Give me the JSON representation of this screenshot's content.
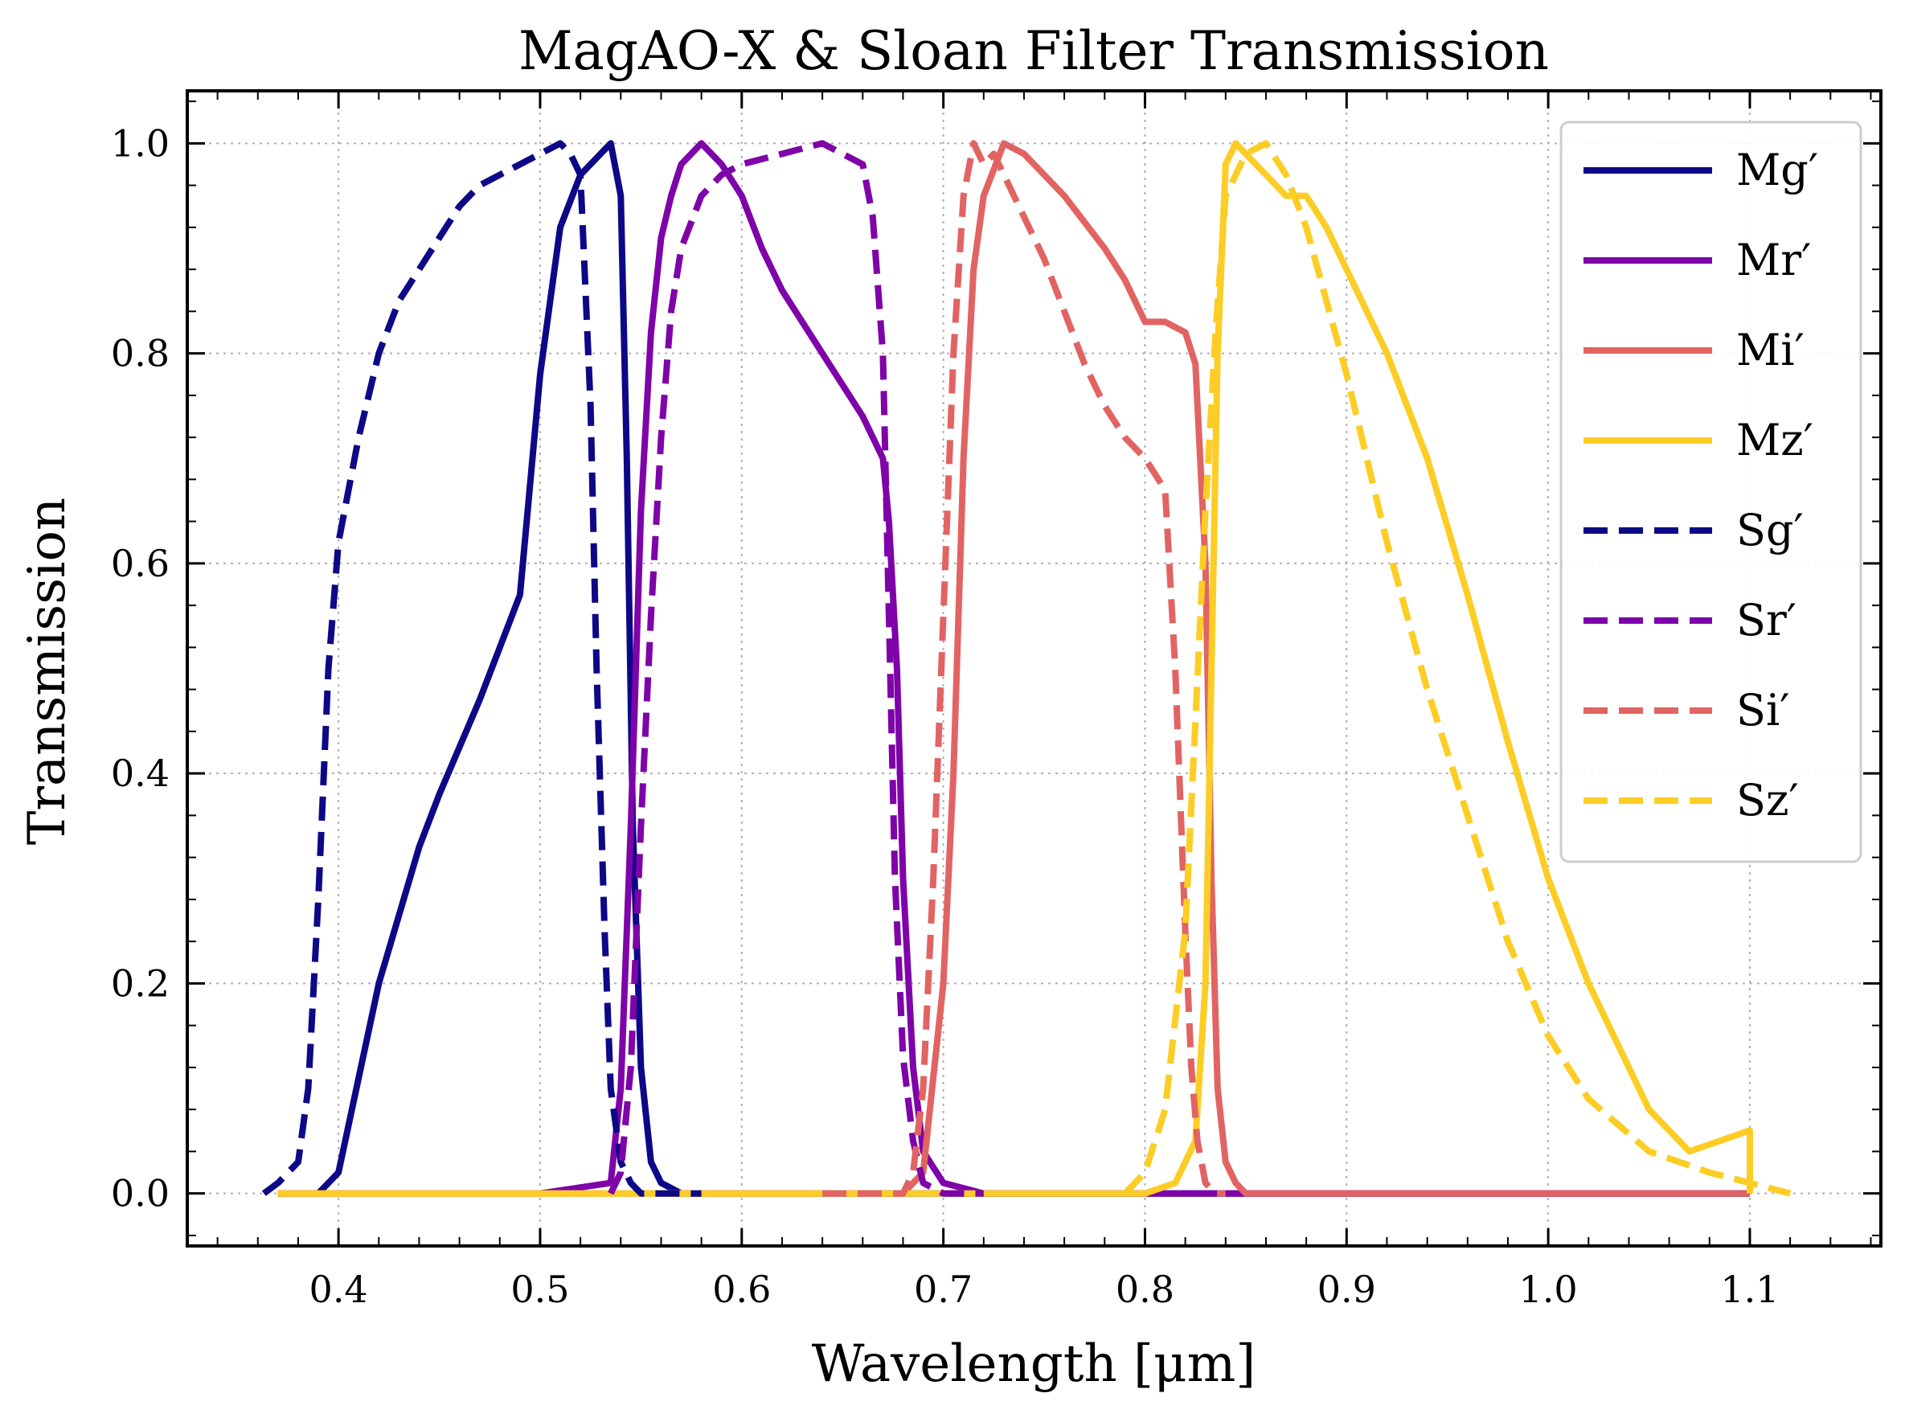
{
  "chart_data": {
    "type": "line",
    "title": "MagAO-X & Sloan Filter Transmission",
    "xlabel": "Wavelength [μm]",
    "ylabel": "Transmission",
    "xlim": [
      0.325,
      1.165
    ],
    "ylim": [
      -0.05,
      1.05
    ],
    "xticks": [
      0.4,
      0.5,
      0.6,
      0.7,
      0.8,
      0.9,
      1.0,
      1.1
    ],
    "xtick_labels": [
      "0.4",
      "0.5",
      "0.6",
      "0.7",
      "0.8",
      "0.9",
      "1.0",
      "1.1"
    ],
    "yticks": [
      0.0,
      0.2,
      0.4,
      0.6,
      0.8,
      1.0
    ],
    "ytick_labels": [
      "0.0",
      "0.2",
      "0.4",
      "0.6",
      "0.8",
      "1.0"
    ],
    "grid": true,
    "legend_position": "top-right",
    "series": [
      {
        "name": "Mg′",
        "color": "#0d0887",
        "style": "solid",
        "x": [
          0.37,
          0.39,
          0.4,
          0.42,
          0.44,
          0.45,
          0.47,
          0.48,
          0.49,
          0.5,
          0.51,
          0.52,
          0.53,
          0.535,
          0.54,
          0.543,
          0.546,
          0.55,
          0.555,
          0.56,
          0.57,
          0.58,
          0.6,
          0.8,
          1.0,
          1.1
        ],
        "y": [
          0.0,
          0.0,
          0.02,
          0.2,
          0.33,
          0.38,
          0.47,
          0.52,
          0.57,
          0.78,
          0.92,
          0.97,
          0.99,
          1.0,
          0.95,
          0.7,
          0.35,
          0.12,
          0.03,
          0.01,
          0.0,
          0.0,
          0.0,
          0.0,
          0.0,
          0.0
        ]
      },
      {
        "name": "Mr′",
        "color": "#7e03a8",
        "style": "solid",
        "x": [
          0.37,
          0.5,
          0.535,
          0.54,
          0.545,
          0.55,
          0.555,
          0.56,
          0.565,
          0.57,
          0.58,
          0.59,
          0.6,
          0.61,
          0.62,
          0.64,
          0.66,
          0.67,
          0.673,
          0.677,
          0.68,
          0.685,
          0.69,
          0.7,
          0.72,
          0.8,
          0.9,
          1.0,
          1.1
        ],
        "y": [
          0.0,
          0.0,
          0.01,
          0.1,
          0.35,
          0.65,
          0.82,
          0.91,
          0.95,
          0.98,
          1.0,
          0.98,
          0.95,
          0.9,
          0.86,
          0.8,
          0.74,
          0.7,
          0.64,
          0.5,
          0.3,
          0.12,
          0.04,
          0.01,
          0.0,
          0.0,
          0.0,
          0.0,
          0.0
        ]
      },
      {
        "name": "Mi′",
        "color": "#e16462",
        "style": "solid",
        "x": [
          0.37,
          0.6,
          0.68,
          0.69,
          0.7,
          0.705,
          0.71,
          0.715,
          0.72,
          0.73,
          0.74,
          0.76,
          0.78,
          0.79,
          0.8,
          0.81,
          0.82,
          0.825,
          0.83,
          0.833,
          0.836,
          0.84,
          0.845,
          0.85,
          0.86,
          0.9,
          1.0,
          1.1
        ],
        "y": [
          0.0,
          0.0,
          0.0,
          0.02,
          0.2,
          0.4,
          0.7,
          0.88,
          0.95,
          1.0,
          0.99,
          0.95,
          0.9,
          0.87,
          0.83,
          0.83,
          0.82,
          0.79,
          0.6,
          0.3,
          0.1,
          0.03,
          0.01,
          0.0,
          0.0,
          0.0,
          0.0,
          0.0
        ]
      },
      {
        "name": "Mz′",
        "color": "#fccd25",
        "style": "solid",
        "x": [
          0.37,
          0.7,
          0.8,
          0.815,
          0.825,
          0.83,
          0.833,
          0.836,
          0.84,
          0.845,
          0.86,
          0.87,
          0.88,
          0.89,
          0.9,
          0.92,
          0.94,
          0.96,
          0.98,
          1.0,
          1.02,
          1.05,
          1.07,
          1.085,
          1.1,
          1.1
        ],
        "y": [
          0.0,
          0.0,
          0.0,
          0.01,
          0.05,
          0.2,
          0.5,
          0.8,
          0.98,
          1.0,
          0.97,
          0.95,
          0.95,
          0.92,
          0.88,
          0.8,
          0.7,
          0.57,
          0.43,
          0.3,
          0.2,
          0.08,
          0.04,
          0.05,
          0.06,
          0.0
        ]
      },
      {
        "name": "Sg′",
        "color": "#0d0887",
        "style": "dashed",
        "x": [
          0.363,
          0.37,
          0.38,
          0.385,
          0.39,
          0.395,
          0.4,
          0.41,
          0.42,
          0.43,
          0.44,
          0.45,
          0.46,
          0.47,
          0.48,
          0.49,
          0.5,
          0.51,
          0.515,
          0.52,
          0.525,
          0.528,
          0.532,
          0.535,
          0.54,
          0.545,
          0.55,
          0.56,
          0.58
        ],
        "y": [
          0.0,
          0.01,
          0.03,
          0.1,
          0.28,
          0.5,
          0.62,
          0.72,
          0.8,
          0.85,
          0.88,
          0.91,
          0.94,
          0.96,
          0.97,
          0.98,
          0.99,
          1.0,
          0.99,
          0.97,
          0.75,
          0.5,
          0.25,
          0.1,
          0.03,
          0.01,
          0.0,
          0.0,
          0.0
        ]
      },
      {
        "name": "Sr′",
        "color": "#7e03a8",
        "style": "dashed",
        "x": [
          0.535,
          0.54,
          0.545,
          0.55,
          0.555,
          0.56,
          0.565,
          0.57,
          0.58,
          0.59,
          0.6,
          0.62,
          0.64,
          0.65,
          0.66,
          0.665,
          0.67,
          0.673,
          0.676,
          0.68,
          0.685,
          0.69,
          0.7,
          0.72
        ],
        "y": [
          0.0,
          0.02,
          0.12,
          0.35,
          0.55,
          0.72,
          0.84,
          0.9,
          0.95,
          0.97,
          0.98,
          0.99,
          1.0,
          0.99,
          0.98,
          0.93,
          0.8,
          0.55,
          0.3,
          0.13,
          0.05,
          0.01,
          0.0,
          0.0
        ]
      },
      {
        "name": "Si′",
        "color": "#e16462",
        "style": "dashed",
        "x": [
          0.64,
          0.68,
          0.685,
          0.69,
          0.695,
          0.7,
          0.705,
          0.71,
          0.715,
          0.72,
          0.725,
          0.73,
          0.74,
          0.75,
          0.76,
          0.77,
          0.78,
          0.79,
          0.8,
          0.81,
          0.815,
          0.82,
          0.823,
          0.826,
          0.83,
          0.835,
          0.84
        ],
        "y": [
          0.0,
          0.0,
          0.02,
          0.1,
          0.3,
          0.55,
          0.8,
          0.95,
          1.0,
          0.98,
          0.99,
          0.97,
          0.93,
          0.89,
          0.84,
          0.79,
          0.75,
          0.72,
          0.7,
          0.67,
          0.5,
          0.25,
          0.12,
          0.05,
          0.01,
          0.0,
          0.0
        ]
      },
      {
        "name": "Sz′",
        "color": "#fccd25",
        "style": "dashed",
        "x": [
          0.79,
          0.8,
          0.81,
          0.82,
          0.825,
          0.83,
          0.835,
          0.84,
          0.85,
          0.86,
          0.87,
          0.88,
          0.89,
          0.9,
          0.92,
          0.94,
          0.96,
          0.98,
          1.0,
          1.02,
          1.05,
          1.08,
          1.1,
          1.12
        ],
        "y": [
          0.0,
          0.02,
          0.08,
          0.25,
          0.45,
          0.65,
          0.82,
          0.95,
          0.99,
          1.0,
          0.97,
          0.92,
          0.85,
          0.78,
          0.62,
          0.48,
          0.36,
          0.24,
          0.15,
          0.09,
          0.04,
          0.02,
          0.01,
          0.0
        ]
      }
    ]
  }
}
